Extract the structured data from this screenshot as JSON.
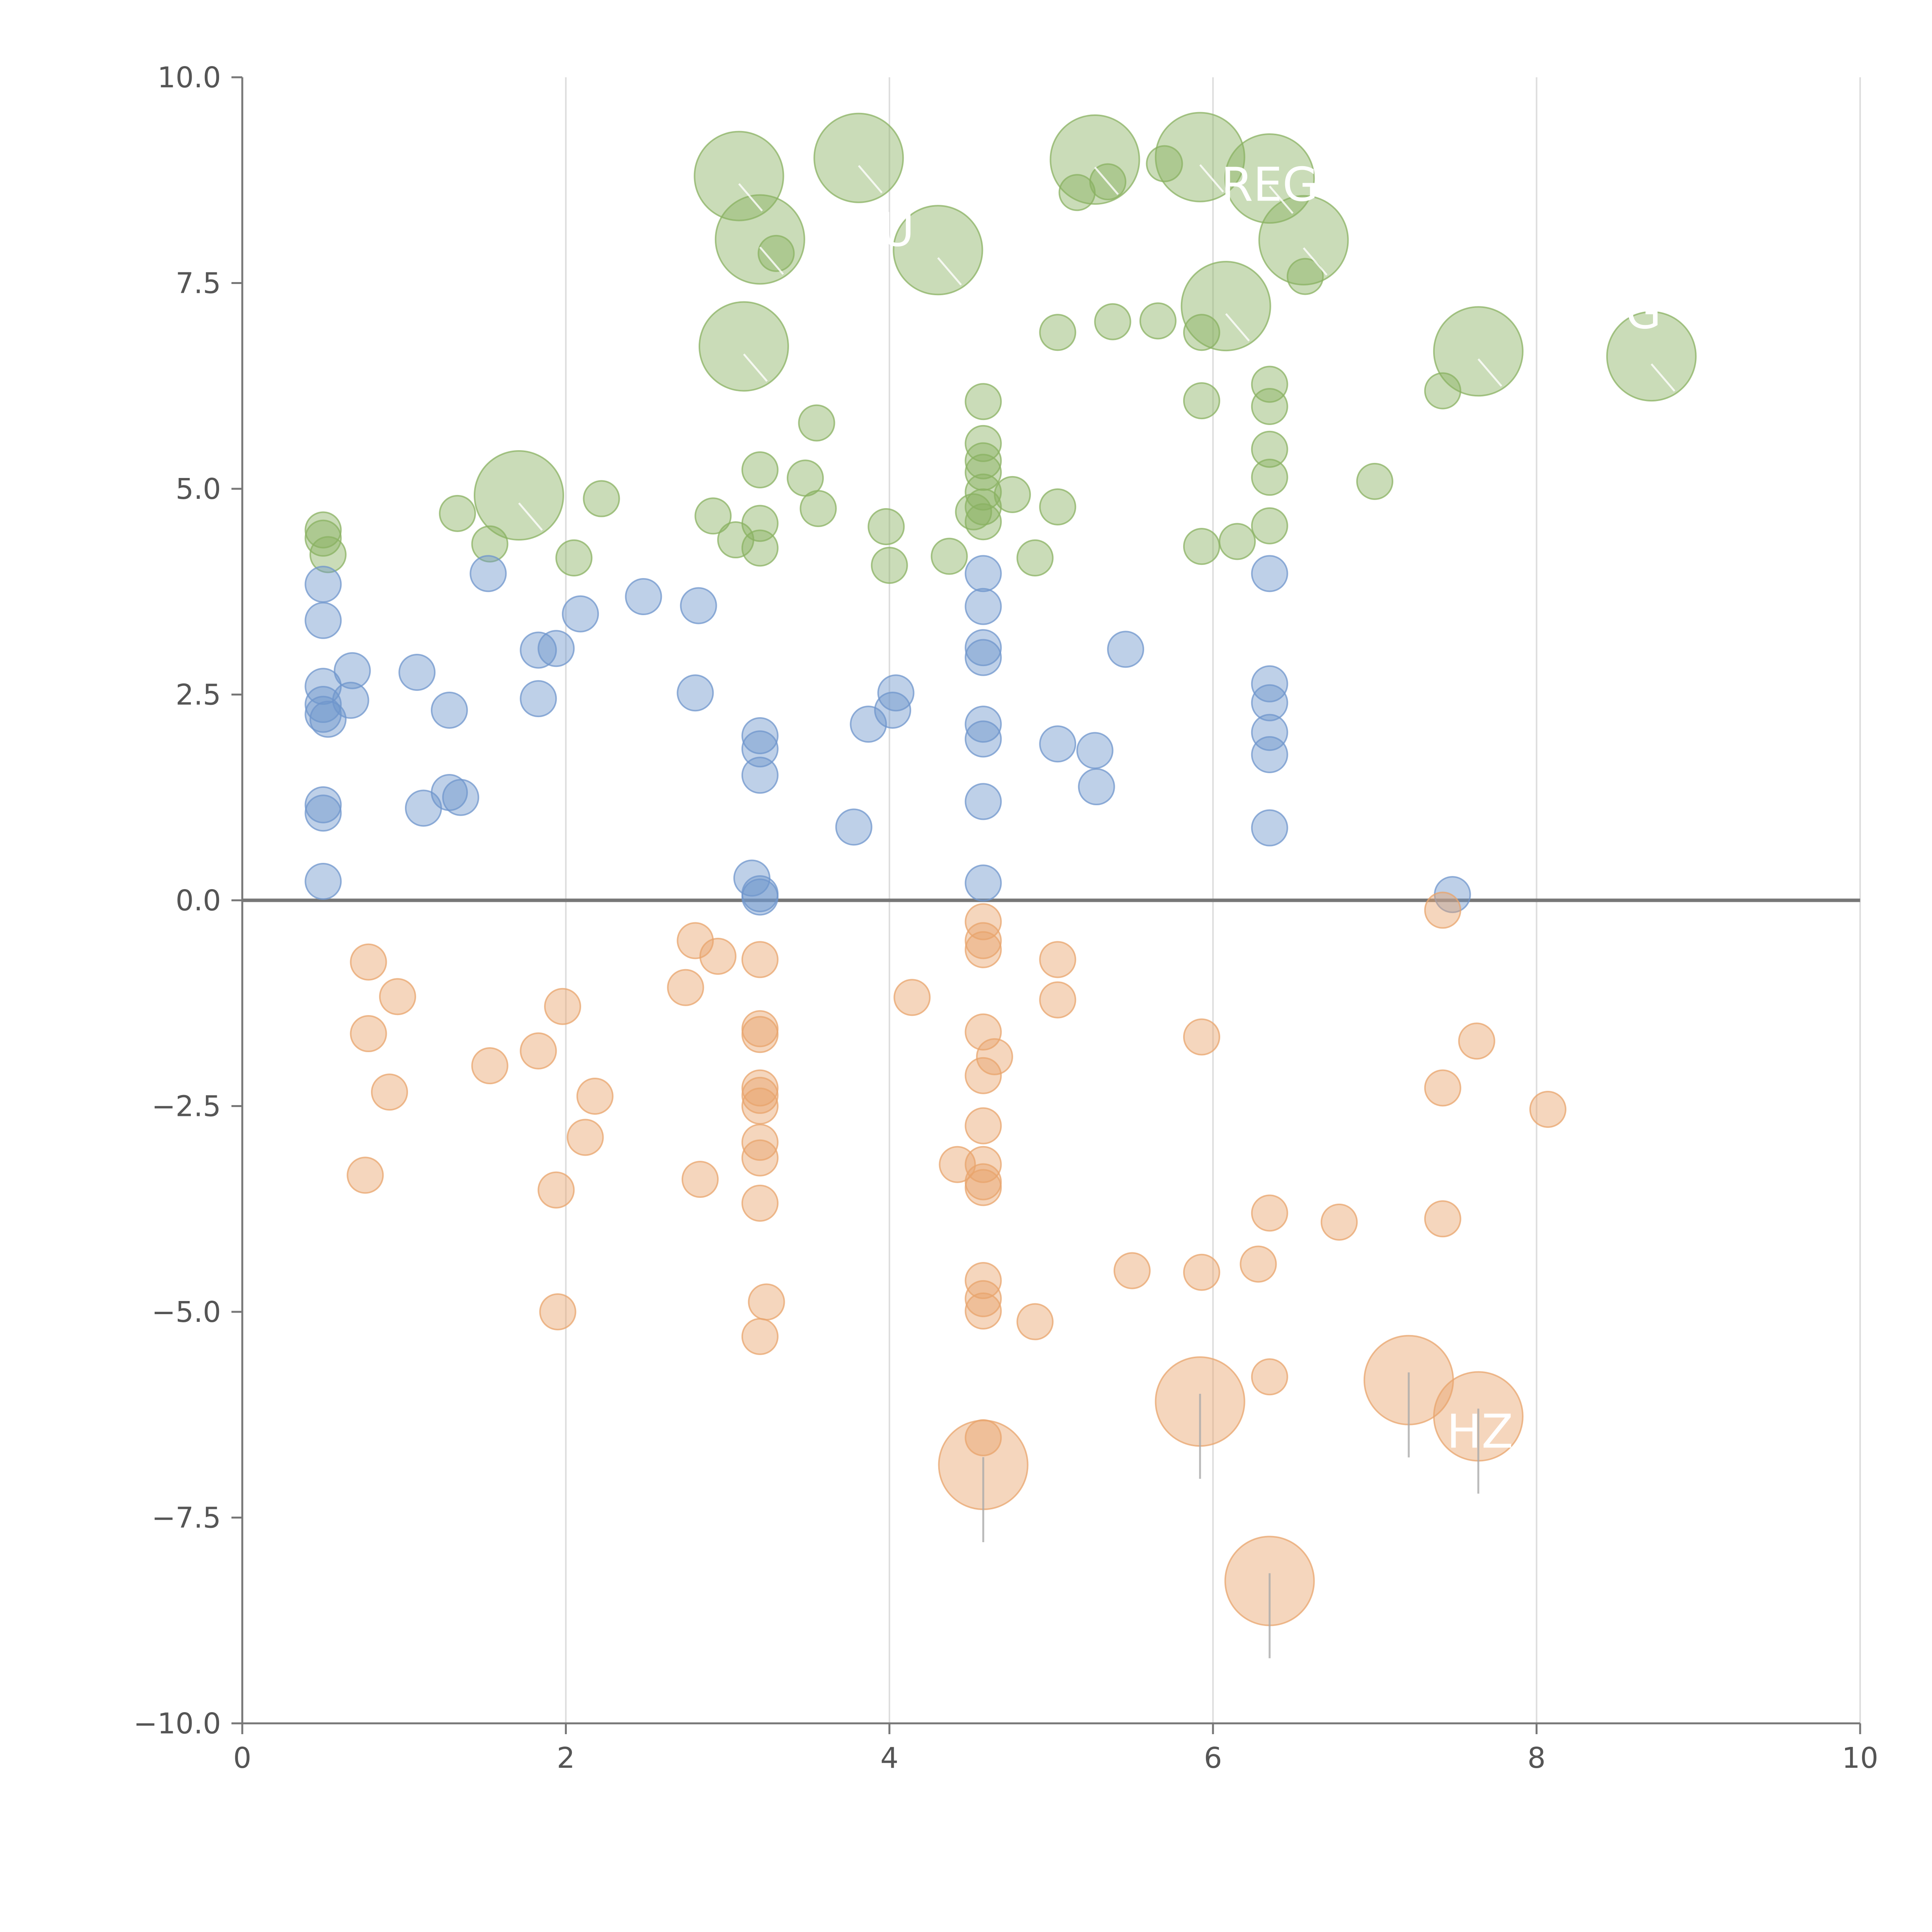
{
  "chart_data": {
    "type": "scatter",
    "title": "",
    "xlabel": "",
    "ylabel": "",
    "xlim": [
      0,
      10
    ],
    "ylim": [
      -10,
      10
    ],
    "x_ticks": [
      0,
      2,
      4,
      6,
      8,
      10
    ],
    "x_tick_labels": [
      "0",
      "2",
      "4",
      "6",
      "8",
      "10"
    ],
    "y_ticks": [
      -10,
      -7.5,
      -5,
      -2.5,
      0,
      2.5,
      5,
      7.5,
      10
    ],
    "y_tick_labels": [
      "−10.0",
      "−7.5",
      "−5.0",
      "−2.5",
      "0.0",
      "2.5",
      "5.0",
      "7.5",
      "10.0"
    ],
    "grid": "vertical",
    "baseline": 0,
    "legend": "none",
    "marker_size_scale": {
      "small": 1,
      "large": 2.5
    },
    "series": [
      {
        "color": "#8ab262",
        "points": [
          [
            0.5,
            4.5,
            1
          ],
          [
            0.5,
            4.4,
            1
          ],
          [
            0.53,
            4.2,
            1
          ],
          [
            1.33,
            4.7,
            1
          ],
          [
            1.53,
            4.33,
            1
          ],
          [
            1.71,
            4.92,
            2.5
          ],
          [
            2.05,
            4.16,
            1
          ],
          [
            2.22,
            4.88,
            1
          ],
          [
            2.91,
            4.67,
            1
          ],
          [
            3.05,
            4.38,
            1
          ],
          [
            3.07,
            8.8,
            2.5
          ],
          [
            3.1,
            6.73,
            2.5
          ],
          [
            3.2,
            8.03,
            2.5
          ],
          [
            3.3,
            7.86,
            1
          ],
          [
            3.2,
            5.23,
            1
          ],
          [
            3.2,
            4.58,
            1
          ],
          [
            3.2,
            4.28,
            1
          ],
          [
            3.48,
            5.13,
            1
          ],
          [
            3.55,
            5.8,
            1
          ],
          [
            3.56,
            4.76,
            1
          ],
          [
            3.81,
            9.02,
            2.5
          ],
          [
            3.98,
            4.54,
            1
          ],
          [
            4.0,
            4.07,
            1
          ],
          [
            4.3,
            7.9,
            2.5
          ],
          [
            4.37,
            4.18,
            1
          ],
          [
            4.52,
            4.72,
            1
          ],
          [
            4.58,
            6.06,
            1
          ],
          [
            4.58,
            5.55,
            1
          ],
          [
            4.58,
            5.34,
            1
          ],
          [
            4.58,
            5.2,
            1
          ],
          [
            4.58,
            4.96,
            1
          ],
          [
            4.58,
            4.78,
            1
          ],
          [
            4.58,
            4.6,
            1
          ],
          [
            4.76,
            4.93,
            1
          ],
          [
            4.9,
            4.16,
            1
          ],
          [
            5.04,
            6.9,
            1
          ],
          [
            5.04,
            4.78,
            1
          ],
          [
            5.16,
            8.6,
            1
          ],
          [
            5.27,
            9.0,
            2.5
          ],
          [
            5.35,
            8.73,
            1
          ],
          [
            5.38,
            7.03,
            1
          ],
          [
            5.66,
            7.04,
            1
          ],
          [
            5.7,
            8.95,
            1
          ],
          [
            5.92,
            9.03,
            2.5
          ],
          [
            5.93,
            6.9,
            1
          ],
          [
            5.93,
            6.07,
            1
          ],
          [
            5.93,
            4.3,
            1
          ],
          [
            6.08,
            7.22,
            2.5
          ],
          [
            6.15,
            4.36,
            1
          ],
          [
            6.35,
            8.77,
            2.5
          ],
          [
            6.35,
            6.27,
            1
          ],
          [
            6.35,
            6.0,
            1
          ],
          [
            6.35,
            5.48,
            1
          ],
          [
            6.35,
            5.14,
            1
          ],
          [
            6.35,
            4.55,
            1
          ],
          [
            6.56,
            8.02,
            2.5
          ],
          [
            6.57,
            7.58,
            1
          ],
          [
            7.0,
            5.09,
            1
          ],
          [
            7.42,
            6.19,
            1
          ],
          [
            7.64,
            6.67,
            2.5
          ],
          [
            8.71,
            6.61,
            2.5
          ]
        ]
      },
      {
        "color": "#6f96cc",
        "points": [
          [
            0.5,
            3.84,
            1
          ],
          [
            0.5,
            3.4,
            1
          ],
          [
            0.5,
            2.6,
            1
          ],
          [
            0.5,
            2.38,
            1
          ],
          [
            0.5,
            2.26,
            1
          ],
          [
            0.53,
            2.2,
            1
          ],
          [
            0.67,
            2.43,
            1
          ],
          [
            0.68,
            2.79,
            1
          ],
          [
            0.5,
            1.16,
            1
          ],
          [
            0.5,
            1.06,
            1
          ],
          [
            0.5,
            0.23,
            1
          ],
          [
            1.08,
            2.77,
            1
          ],
          [
            1.12,
            1.12,
            1
          ],
          [
            1.28,
            2.31,
            1
          ],
          [
            1.28,
            1.31,
            1
          ],
          [
            1.35,
            1.25,
            1
          ],
          [
            1.52,
            3.97,
            1
          ],
          [
            1.83,
            3.04,
            1
          ],
          [
            1.83,
            2.45,
            1
          ],
          [
            1.94,
            3.06,
            1
          ],
          [
            2.09,
            3.48,
            1
          ],
          [
            2.48,
            3.69,
            1
          ],
          [
            2.8,
            2.52,
            1
          ],
          [
            2.82,
            3.58,
            1
          ],
          [
            3.15,
            0.27,
            1
          ],
          [
            3.2,
            2.0,
            1
          ],
          [
            3.2,
            1.84,
            1
          ],
          [
            3.2,
            1.52,
            1
          ],
          [
            3.2,
            0.08,
            1
          ],
          [
            3.2,
            0.04,
            1
          ],
          [
            3.78,
            0.89,
            1
          ],
          [
            3.87,
            2.14,
            1
          ],
          [
            4.02,
            2.31,
            1
          ],
          [
            4.04,
            2.52,
            1
          ],
          [
            4.58,
            3.97,
            1
          ],
          [
            4.58,
            3.57,
            1
          ],
          [
            4.58,
            3.07,
            1
          ],
          [
            4.58,
            2.95,
            1
          ],
          [
            4.58,
            2.14,
            1
          ],
          [
            4.58,
            1.96,
            1
          ],
          [
            4.58,
            1.2,
            1
          ],
          [
            4.58,
            0.21,
            1
          ],
          [
            5.04,
            1.9,
            1
          ],
          [
            5.27,
            1.82,
            1
          ],
          [
            5.28,
            1.38,
            1
          ],
          [
            5.46,
            3.05,
            1
          ],
          [
            6.35,
            3.97,
            1
          ],
          [
            6.35,
            2.63,
            1
          ],
          [
            6.35,
            2.4,
            1
          ],
          [
            6.35,
            2.04,
            1
          ],
          [
            6.35,
            1.77,
            1
          ],
          [
            6.35,
            0.88,
            1
          ],
          [
            7.48,
            0.07,
            1
          ]
        ]
      },
      {
        "color": "#e8a46c",
        "points": [
          [
            0.78,
            -0.75,
            1
          ],
          [
            0.78,
            -1.62,
            1
          ],
          [
            0.76,
            -3.34,
            1
          ],
          [
            0.91,
            -2.33,
            1
          ],
          [
            0.96,
            -1.17,
            1
          ],
          [
            1.53,
            -2.01,
            1
          ],
          [
            1.83,
            -1.83,
            1
          ],
          [
            1.94,
            -3.52,
            1
          ],
          [
            1.95,
            -5.0,
            1
          ],
          [
            1.98,
            -1.29,
            1
          ],
          [
            2.12,
            -2.88,
            1
          ],
          [
            2.18,
            -2.38,
            1
          ],
          [
            2.74,
            -1.06,
            1
          ],
          [
            2.8,
            -0.49,
            1
          ],
          [
            2.83,
            -3.39,
            1
          ],
          [
            2.94,
            -0.68,
            1
          ],
          [
            3.2,
            -0.72,
            1
          ],
          [
            3.2,
            -1.56,
            1
          ],
          [
            3.2,
            -1.63,
            1
          ],
          [
            3.2,
            -2.28,
            1
          ],
          [
            3.2,
            -2.37,
            1
          ],
          [
            3.2,
            -2.5,
            1
          ],
          [
            3.2,
            -2.94,
            1
          ],
          [
            3.2,
            -3.13,
            1
          ],
          [
            3.2,
            -3.68,
            1
          ],
          [
            3.2,
            -5.3,
            1
          ],
          [
            3.24,
            -4.88,
            1
          ],
          [
            4.14,
            -1.18,
            1
          ],
          [
            4.42,
            -3.21,
            1
          ],
          [
            4.58,
            -0.26,
            1
          ],
          [
            4.58,
            -0.49,
            1
          ],
          [
            4.58,
            -0.6,
            1
          ],
          [
            4.58,
            -1.6,
            1
          ],
          [
            4.58,
            -2.13,
            1
          ],
          [
            4.58,
            -2.74,
            1
          ],
          [
            4.58,
            -3.21,
            1
          ],
          [
            4.58,
            -3.42,
            1
          ],
          [
            4.58,
            -3.49,
            1
          ],
          [
            4.58,
            -4.62,
            1
          ],
          [
            4.58,
            -4.84,
            1
          ],
          [
            4.58,
            -4.99,
            1
          ],
          [
            4.58,
            -6.53,
            1
          ],
          [
            4.58,
            -6.86,
            2.5
          ],
          [
            4.65,
            -1.9,
            1
          ],
          [
            4.9,
            -5.12,
            1
          ],
          [
            5.04,
            -0.72,
            1
          ],
          [
            5.04,
            -1.21,
            1
          ],
          [
            5.5,
            -4.5,
            1
          ],
          [
            5.92,
            -6.09,
            2.5
          ],
          [
            5.93,
            -1.66,
            1
          ],
          [
            5.93,
            -4.52,
            1
          ],
          [
            6.28,
            -4.42,
            1
          ],
          [
            6.35,
            -3.8,
            1
          ],
          [
            6.35,
            -5.79,
            1
          ],
          [
            6.35,
            -8.27,
            2.5
          ],
          [
            6.78,
            -3.91,
            1
          ],
          [
            7.21,
            -5.83,
            2.5
          ],
          [
            7.42,
            -0.12,
            1
          ],
          [
            7.42,
            -2.28,
            1
          ],
          [
            7.42,
            -3.87,
            1
          ],
          [
            7.63,
            -1.71,
            1
          ],
          [
            7.64,
            -6.27,
            2.5
          ],
          [
            8.07,
            -2.54,
            1
          ]
        ]
      }
    ],
    "point_labels": [
      {
        "text": "REG",
        "x": 6.35,
        "y": 8.5
      },
      {
        "text": "U",
        "x": 4.05,
        "y": 7.95
      },
      {
        "text": "G",
        "x": 8.66,
        "y": 6.95
      },
      {
        "text": "HZ",
        "x": 7.65,
        "y": -6.65
      }
    ]
  }
}
